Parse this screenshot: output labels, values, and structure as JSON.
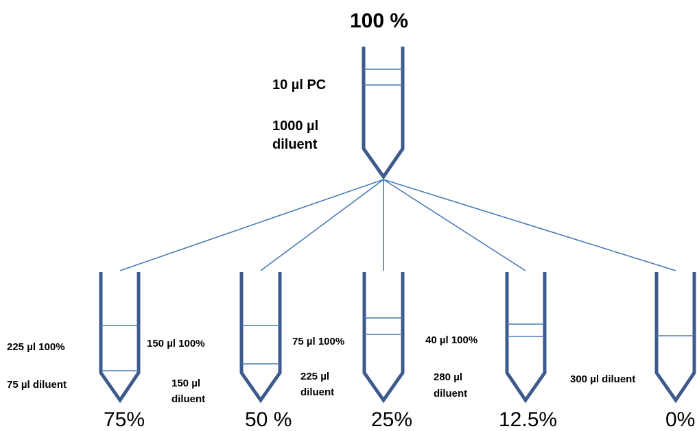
{
  "top": {
    "percent": "100 %",
    "pc_label": "10 µl PC",
    "diluent_label_line1": "1000 µl",
    "diluent_label_line2": "diluent"
  },
  "tubes": [
    {
      "percent": "75%",
      "stock": "225 µl 100%",
      "diluent": "75 µl diluent"
    },
    {
      "percent": "50 %",
      "stock": "150 µl 100%",
      "diluent_line1": "150 µl",
      "diluent_line2": "diluent"
    },
    {
      "percent": "25%",
      "stock": "75 µl 100%",
      "diluent_line1": "225 µl",
      "diluent_line2": "diluent"
    },
    {
      "percent": "12.5%",
      "stock": "40 µl 100%",
      "diluent_line1": "280 µl",
      "diluent_line2": "diluent"
    },
    {
      "percent": "0%",
      "diluent": "300 µl diluent"
    }
  ],
  "colors": {
    "tube_outline": "#3C5A8C",
    "connector": "#4A7AB5"
  }
}
